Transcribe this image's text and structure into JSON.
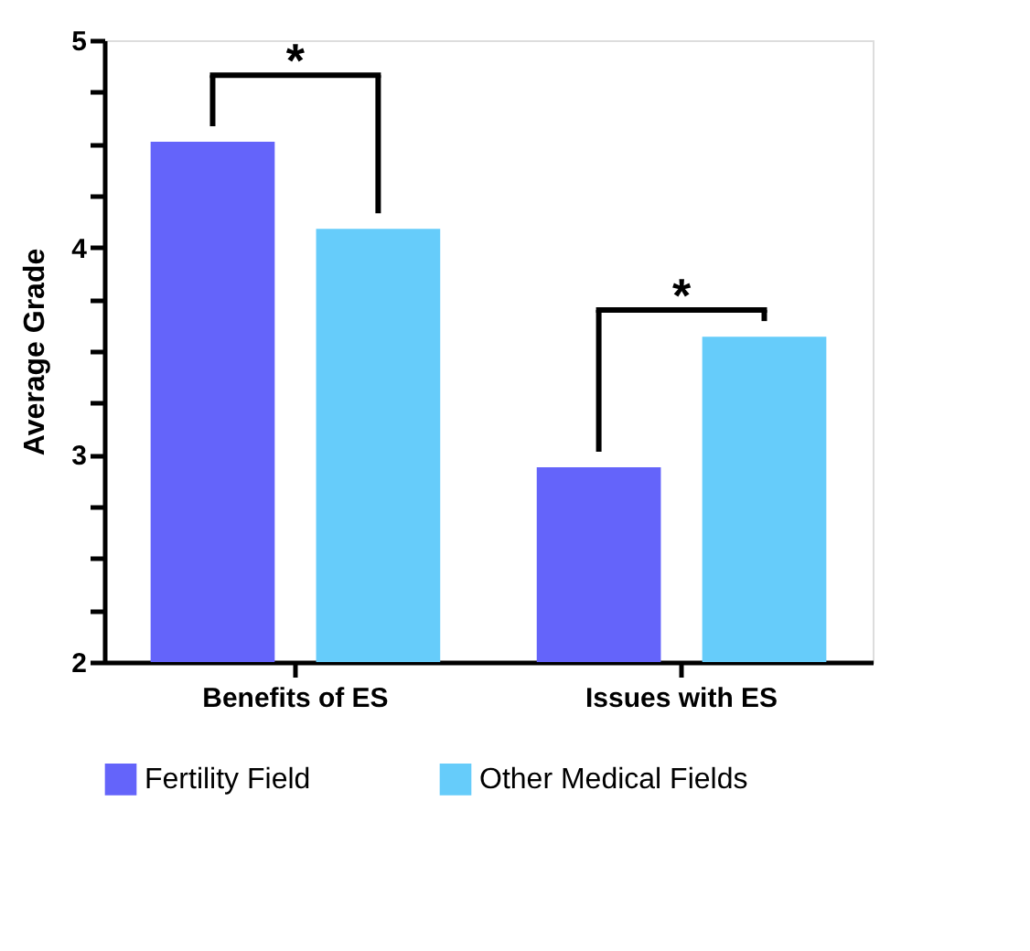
{
  "chart_data": {
    "type": "bar",
    "ylabel": "Average Grade",
    "categories": [
      "Benefits of ES",
      "Issues with ES"
    ],
    "series": [
      {
        "name": "Fertility Field",
        "color": "#6464fa",
        "values": [
          4.51,
          2.94
        ]
      },
      {
        "name": "Other Medical Fields",
        "color": "#66ccfa",
        "values": [
          4.09,
          3.57
        ]
      }
    ],
    "ylim": [
      2,
      5
    ],
    "yticks": [
      2,
      {
        "value": 2.25,
        "label": null
      },
      {
        "value": 2.5,
        "label": null
      },
      {
        "value": 2.75,
        "label": null
      },
      3,
      {
        "value": 3.25,
        "label": null
      },
      {
        "value": 3.5,
        "label": null
      },
      {
        "value": 3.75,
        "label": null
      },
      4,
      {
        "value": 4.25,
        "label": null
      },
      {
        "value": 4.5,
        "label": null
      },
      {
        "value": 4.75,
        "label": null
      },
      5
    ],
    "annotations": [
      "*",
      "*"
    ],
    "grid": false,
    "legend": "bottom"
  }
}
